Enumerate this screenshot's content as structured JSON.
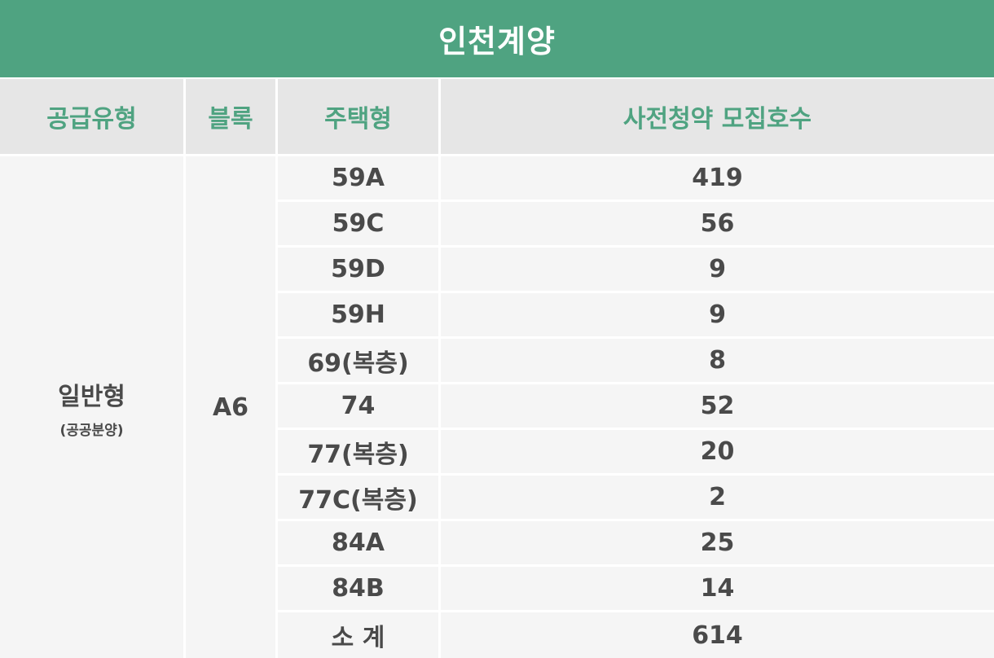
{
  "title": "인천계양",
  "headers": {
    "supply_type": "공급유형",
    "block": "블록",
    "housing_type": "주택형",
    "units": "사전청약 모집호수"
  },
  "supply_type": {
    "main": "일반형",
    "sub": "(공공분양)"
  },
  "block": "A6",
  "rows": [
    {
      "type": "59A",
      "count": "419"
    },
    {
      "type": "59C",
      "count": "56"
    },
    {
      "type": "59D",
      "count": "9"
    },
    {
      "type": "59H",
      "count": "9"
    },
    {
      "type": "69(복층)",
      "count": "8"
    },
    {
      "type": "74",
      "count": "52"
    },
    {
      "type": "77(복층)",
      "count": "20"
    },
    {
      "type": "77C(복층)",
      "count": "2"
    },
    {
      "type": "84A",
      "count": "25"
    },
    {
      "type": "84B",
      "count": "14"
    }
  ],
  "subtotal": {
    "label": "소 계",
    "count": "614"
  },
  "colors": {
    "accent": "#4fa381",
    "header_bg": "#e6e6e6",
    "body_bg": "#f5f5f5",
    "text": "#4a4a4a"
  }
}
